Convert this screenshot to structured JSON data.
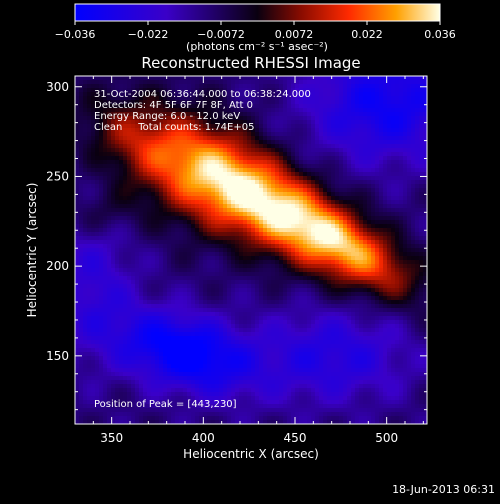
{
  "chart_data": {
    "type": "heatmap",
    "title": "Reconstructed RHESSI Image",
    "xlabel": "Heliocentric X (arcsec)",
    "ylabel": "Heliocentric Y (arcsec)",
    "xlim": [
      330,
      522
    ],
    "ylim": [
      112,
      306
    ],
    "xticks": [
      350,
      400,
      450,
      500
    ],
    "yticks": [
      150,
      200,
      250,
      300
    ],
    "colorbar": {
      "range": [
        -0.036,
        0.036
      ],
      "ticks": [
        "−0.036",
        "−0.022",
        "−0.0072",
        "0.0072",
        "0.022",
        "0.036"
      ],
      "label": "(photons cm⁻² s⁻¹ asec⁻²)"
    },
    "info_lines": [
      "31-Oct-2004 06:36:44.000 to 06:38:24.000",
      "Detectors: 4F 5F 6F 7F 8F, Att 0",
      "Energy Range: 6.0 - 12.0 keV",
      "Clean     Total counts: 1.74E+05"
    ],
    "peak_text": "Position of Peak = [443,230]",
    "peak": [
      443,
      230
    ]
  },
  "footer_date": "18-Jun-2013 06:31"
}
